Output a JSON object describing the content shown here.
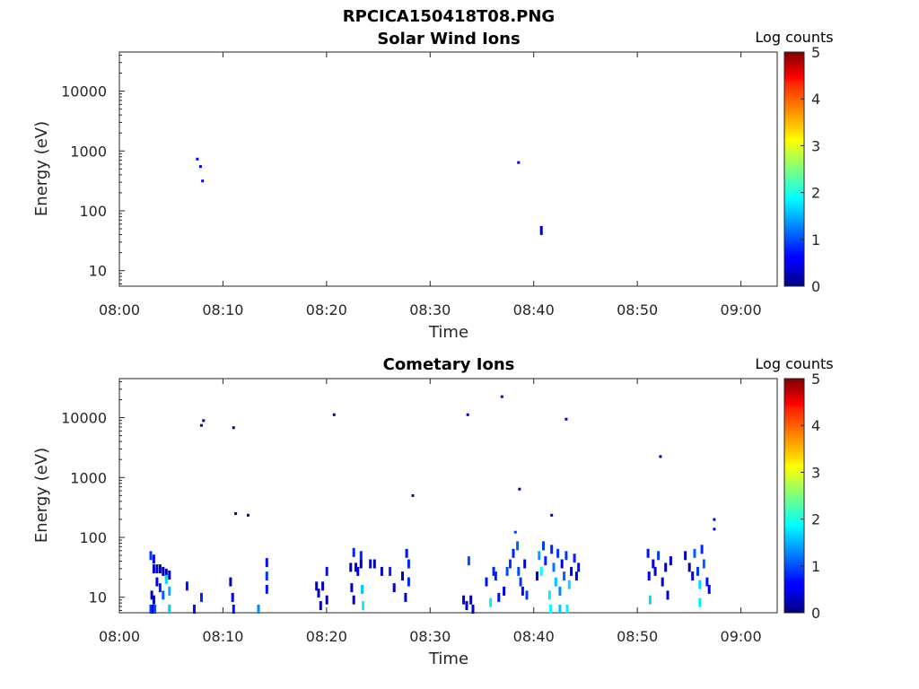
{
  "figure": {
    "title": "RPCICA150418T08.PNG"
  },
  "colorbar": {
    "title": "Log counts",
    "ticks": [
      "0",
      "1",
      "2",
      "3",
      "4",
      "5"
    ],
    "range": [
      0,
      5
    ]
  },
  "chart_data": [
    {
      "type": "heatmap",
      "title": "Solar Wind Ions",
      "xlabel": "Time",
      "ylabel": "Energy (eV)",
      "xticks": [
        "08:00",
        "08:10",
        "08:20",
        "08:30",
        "08:40",
        "08:50",
        "09:00"
      ],
      "xlim_min": [
        0,
        63.5
      ],
      "yscale": "log",
      "yticks": [
        "10",
        "100",
        "1000",
        "10000"
      ],
      "ylim": [
        5.5,
        45000
      ],
      "points": [
        {
          "t": 7.4,
          "e": 720,
          "v": 0.3
        },
        {
          "t": 7.7,
          "e": 540,
          "v": 0.3
        },
        {
          "t": 7.9,
          "e": 310,
          "v": 0.5
        },
        {
          "t": 38.4,
          "e": 630,
          "v": 0.3
        },
        {
          "t": 40.6,
          "e": 52,
          "v": 0.3
        }
      ]
    },
    {
      "type": "heatmap",
      "title": "Cometary Ions",
      "xlabel": "Time",
      "ylabel": "Energy (eV)",
      "xticks": [
        "08:00",
        "08:10",
        "08:20",
        "08:30",
        "08:40",
        "08:50",
        "09:00"
      ],
      "xlim_min": [
        0,
        63.5
      ],
      "yscale": "log",
      "yticks": [
        "10",
        "100",
        "1000",
        "10000"
      ],
      "ylim": [
        5.5,
        45000
      ],
      "points": [
        {
          "t": 7.8,
          "e": 7300,
          "v": 0.3
        },
        {
          "t": 8.0,
          "e": 8800,
          "v": 0.3
        },
        {
          "t": 10.9,
          "e": 6700,
          "v": 0.3
        },
        {
          "t": 20.6,
          "e": 11000,
          "v": 0.3
        },
        {
          "t": 33.5,
          "e": 11000,
          "v": 0.3
        },
        {
          "t": 36.8,
          "e": 22000,
          "v": 0.3
        },
        {
          "t": 43.0,
          "e": 9300,
          "v": 0.3
        },
        {
          "t": 52.1,
          "e": 2200,
          "v": 0.3
        },
        {
          "t": 28.2,
          "e": 490,
          "v": 0.3
        },
        {
          "t": 38.5,
          "e": 630,
          "v": 0.3
        },
        {
          "t": 11.1,
          "e": 245,
          "v": 0.3
        },
        {
          "t": 12.3,
          "e": 230,
          "v": 0.3
        },
        {
          "t": 41.6,
          "e": 230,
          "v": 0.3
        },
        {
          "t": 57.3,
          "e": 195,
          "v": 0.3
        },
        {
          "t": 57.3,
          "e": 135,
          "v": 0.5
        },
        {
          "t": 2.9,
          "e": 7,
          "v": 0.9
        },
        {
          "t": 3.1,
          "e": 7,
          "v": 0.6
        },
        {
          "t": 3.3,
          "e": 7,
          "v": 1.0
        },
        {
          "t": 2.9,
          "e": 55,
          "v": 0.9
        },
        {
          "t": 3.2,
          "e": 48,
          "v": 0.6
        },
        {
          "t": 3.2,
          "e": 33,
          "v": 0.4
        },
        {
          "t": 3.5,
          "e": 33,
          "v": 0.3
        },
        {
          "t": 3.8,
          "e": 33,
          "v": 0.3
        },
        {
          "t": 4.1,
          "e": 30,
          "v": 0.2
        },
        {
          "t": 4.4,
          "e": 28,
          "v": 0.3
        },
        {
          "t": 4.7,
          "e": 26,
          "v": 0.3
        },
        {
          "t": 3.0,
          "e": 12,
          "v": 0.3
        },
        {
          "t": 3.2,
          "e": 10,
          "v": 0.3
        },
        {
          "t": 3.5,
          "e": 20,
          "v": 0.5
        },
        {
          "t": 3.8,
          "e": 16,
          "v": 0.8
        },
        {
          "t": 4.1,
          "e": 12,
          "v": 1.1
        },
        {
          "t": 4.4,
          "e": 22,
          "v": 1.7
        },
        {
          "t": 4.7,
          "e": 14,
          "v": 1.5
        },
        {
          "t": 4.7,
          "e": 7,
          "v": 1.6
        },
        {
          "t": 6.4,
          "e": 17,
          "v": 0.7
        },
        {
          "t": 7.1,
          "e": 7,
          "v": 0.7
        },
        {
          "t": 7.8,
          "e": 11,
          "v": 0.8
        },
        {
          "t": 10.6,
          "e": 20,
          "v": 0.3
        },
        {
          "t": 10.8,
          "e": 11,
          "v": 0.5
        },
        {
          "t": 10.9,
          "e": 7,
          "v": 0.7
        },
        {
          "t": 13.3,
          "e": 7,
          "v": 1.3
        },
        {
          "t": 14.1,
          "e": 42,
          "v": 0.7
        },
        {
          "t": 14.1,
          "e": 25,
          "v": 0.9
        },
        {
          "t": 14.1,
          "e": 15,
          "v": 0.7
        },
        {
          "t": 18.9,
          "e": 17,
          "v": 0.3
        },
        {
          "t": 19.1,
          "e": 13,
          "v": 0.3
        },
        {
          "t": 19.3,
          "e": 8,
          "v": 0.3
        },
        {
          "t": 19.5,
          "e": 17,
          "v": 0.3
        },
        {
          "t": 19.9,
          "e": 10,
          "v": 0.3
        },
        {
          "t": 19.9,
          "e": 30,
          "v": 0.7
        },
        {
          "t": 22.2,
          "e": 35,
          "v": 0.3
        },
        {
          "t": 22.5,
          "e": 62,
          "v": 0.8
        },
        {
          "t": 22.7,
          "e": 35,
          "v": 0.5
        },
        {
          "t": 22.9,
          "e": 30,
          "v": 0.5
        },
        {
          "t": 23.2,
          "e": 40,
          "v": 0.3
        },
        {
          "t": 22.3,
          "e": 16,
          "v": 0.3
        },
        {
          "t": 22.5,
          "e": 10,
          "v": 0.4
        },
        {
          "t": 23.2,
          "e": 55,
          "v": 0.8
        },
        {
          "t": 23.3,
          "e": 15,
          "v": 1.6
        },
        {
          "t": 23.4,
          "e": 8,
          "v": 1.8
        },
        {
          "t": 24.1,
          "e": 40,
          "v": 0.5
        },
        {
          "t": 24.5,
          "e": 40,
          "v": 0.3
        },
        {
          "t": 25.2,
          "e": 30,
          "v": 0.3
        },
        {
          "t": 26.0,
          "e": 30,
          "v": 0.8
        },
        {
          "t": 26.4,
          "e": 16,
          "v": 0.3
        },
        {
          "t": 27.2,
          "e": 25,
          "v": 0.3
        },
        {
          "t": 27.6,
          "e": 60,
          "v": 0.7
        },
        {
          "t": 27.8,
          "e": 40,
          "v": 0.8
        },
        {
          "t": 27.8,
          "e": 20,
          "v": 0.8
        },
        {
          "t": 27.5,
          "e": 11,
          "v": 0.3
        },
        {
          "t": 33.1,
          "e": 10,
          "v": 0.3
        },
        {
          "t": 33.4,
          "e": 8,
          "v": 0.3
        },
        {
          "t": 33.6,
          "e": 45,
          "v": 1.0
        },
        {
          "t": 33.8,
          "e": 10,
          "v": 0.3
        },
        {
          "t": 34.0,
          "e": 7,
          "v": 0.3
        },
        {
          "t": 35.3,
          "e": 20,
          "v": 0.7
        },
        {
          "t": 35.7,
          "e": 9,
          "v": 1.8
        },
        {
          "t": 36.0,
          "e": 30,
          "v": 0.8
        },
        {
          "t": 36.2,
          "e": 25,
          "v": 0.8
        },
        {
          "t": 36.5,
          "e": 11,
          "v": 0.7
        },
        {
          "t": 37.0,
          "e": 14,
          "v": 0.5
        },
        {
          "t": 37.3,
          "e": 30,
          "v": 1.0
        },
        {
          "t": 37.6,
          "e": 40,
          "v": 0.9
        },
        {
          "t": 37.9,
          "e": 60,
          "v": 0.8
        },
        {
          "t": 38.1,
          "e": 120,
          "v": 0.9
        },
        {
          "t": 38.3,
          "e": 80,
          "v": 1.1
        },
        {
          "t": 38.4,
          "e": 30,
          "v": 1.0
        },
        {
          "t": 38.6,
          "e": 20,
          "v": 0.9
        },
        {
          "t": 38.8,
          "e": 14,
          "v": 0.7
        },
        {
          "t": 39.0,
          "e": 40,
          "v": 0.6
        },
        {
          "t": 39.2,
          "e": 12,
          "v": 0.9
        },
        {
          "t": 40.2,
          "e": 25,
          "v": 0.4
        },
        {
          "t": 40.4,
          "e": 55,
          "v": 1.4
        },
        {
          "t": 40.6,
          "e": 30,
          "v": 1.9
        },
        {
          "t": 40.8,
          "e": 80,
          "v": 0.9
        },
        {
          "t": 41.0,
          "e": 45,
          "v": 0.8
        },
        {
          "t": 41.4,
          "e": 12,
          "v": 1.8
        },
        {
          "t": 41.6,
          "e": 70,
          "v": 0.8
        },
        {
          "t": 41.8,
          "e": 35,
          "v": 1.2
        },
        {
          "t": 42.0,
          "e": 20,
          "v": 1.6
        },
        {
          "t": 42.2,
          "e": 60,
          "v": 0.9
        },
        {
          "t": 42.4,
          "e": 14,
          "v": 1.3
        },
        {
          "t": 42.6,
          "e": 40,
          "v": 0.6
        },
        {
          "t": 42.8,
          "e": 25,
          "v": 1.1
        },
        {
          "t": 43.0,
          "e": 55,
          "v": 0.9
        },
        {
          "t": 43.3,
          "e": 18,
          "v": 1.7
        },
        {
          "t": 43.5,
          "e": 30,
          "v": 0.6
        },
        {
          "t": 43.8,
          "e": 50,
          "v": 0.8
        },
        {
          "t": 44.0,
          "e": 25,
          "v": 0.5
        },
        {
          "t": 44.2,
          "e": 35,
          "v": 0.6
        },
        {
          "t": 41.5,
          "e": 7,
          "v": 1.9
        },
        {
          "t": 42.4,
          "e": 7,
          "v": 1.6
        },
        {
          "t": 43.1,
          "e": 7,
          "v": 1.8
        },
        {
          "t": 50.9,
          "e": 60,
          "v": 0.7
        },
        {
          "t": 51.0,
          "e": 25,
          "v": 0.6
        },
        {
          "t": 51.1,
          "e": 10,
          "v": 1.7
        },
        {
          "t": 51.4,
          "e": 40,
          "v": 0.5
        },
        {
          "t": 51.6,
          "e": 30,
          "v": 0.3
        },
        {
          "t": 51.9,
          "e": 55,
          "v": 0.9
        },
        {
          "t": 52.3,
          "e": 20,
          "v": 0.4
        },
        {
          "t": 52.6,
          "e": 35,
          "v": 0.3
        },
        {
          "t": 52.8,
          "e": 12,
          "v": 0.3
        },
        {
          "t": 53.1,
          "e": 45,
          "v": 0.4
        },
        {
          "t": 54.5,
          "e": 55,
          "v": 0.3
        },
        {
          "t": 54.9,
          "e": 35,
          "v": 0.3
        },
        {
          "t": 55.2,
          "e": 25,
          "v": 0.4
        },
        {
          "t": 55.4,
          "e": 60,
          "v": 1.1
        },
        {
          "t": 55.7,
          "e": 30,
          "v": 0.9
        },
        {
          "t": 55.9,
          "e": 18,
          "v": 1.7
        },
        {
          "t": 55.9,
          "e": 9,
          "v": 1.8
        },
        {
          "t": 56.1,
          "e": 70,
          "v": 0.8
        },
        {
          "t": 56.3,
          "e": 40,
          "v": 1.1
        },
        {
          "t": 56.6,
          "e": 20,
          "v": 0.7
        },
        {
          "t": 56.8,
          "e": 15,
          "v": 0.6
        }
      ]
    }
  ]
}
